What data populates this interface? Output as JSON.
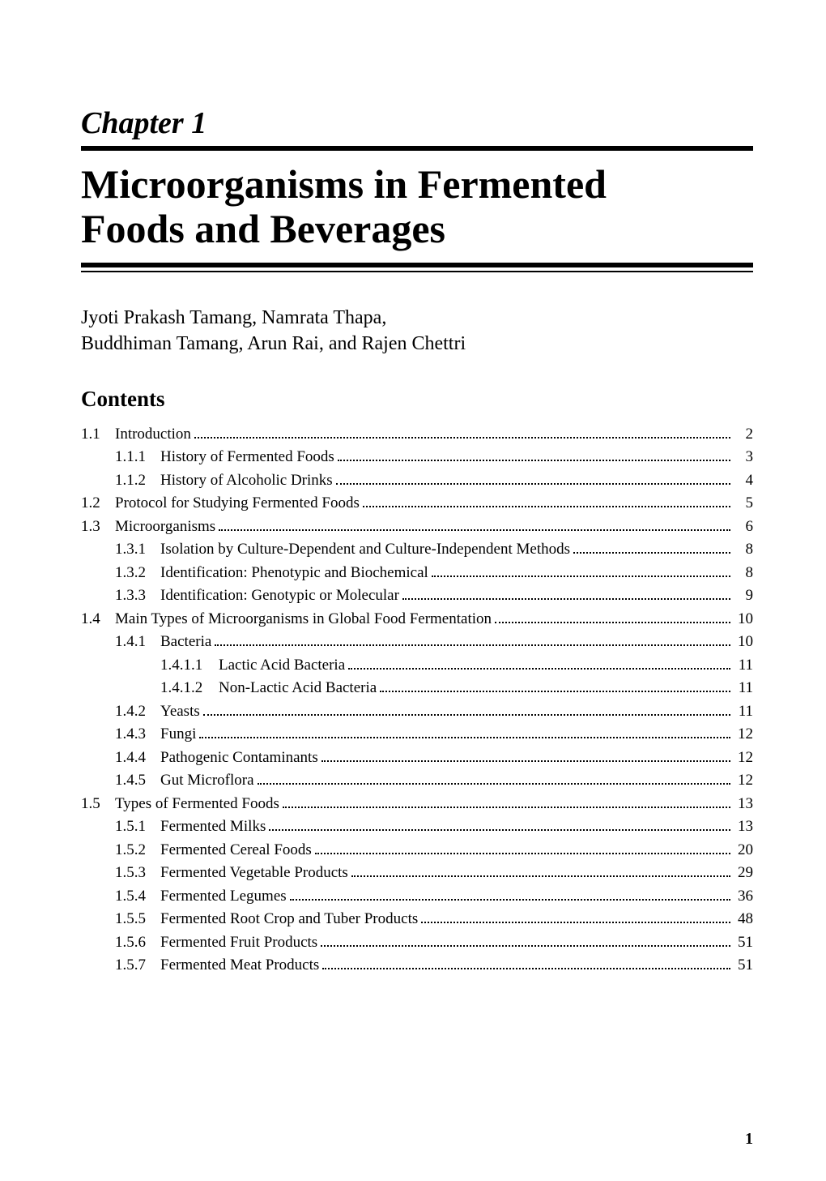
{
  "chapter_label": "Chapter 1",
  "chapter_title_line1": "Microorganisms in Fermented",
  "chapter_title_line2": "Foods and Beverages",
  "authors_line1": "Jyoti Prakash Tamang, Namrata Thapa,",
  "authors_line2": "Buddhiman Tamang, Arun Rai, and Rajen Chettri",
  "contents_heading": "Contents",
  "page_number": "1",
  "toc": [
    {
      "level": 1,
      "num": "1.1",
      "text": "Introduction",
      "page": "2"
    },
    {
      "level": 2,
      "num": "1.1.1",
      "text": "History of Fermented Foods",
      "page": "3"
    },
    {
      "level": 2,
      "num": "1.1.2",
      "text": "History of Alcoholic Drinks",
      "page": "4"
    },
    {
      "level": 1,
      "num": "1.2",
      "text": "Protocol for Studying Fermented Foods",
      "page": "5"
    },
    {
      "level": 1,
      "num": "1.3",
      "text": "Microorganisms",
      "page": "6"
    },
    {
      "level": 2,
      "num": "1.3.1",
      "text": "Isolation by Culture-Dependent and Culture-Independent Methods",
      "page": "8"
    },
    {
      "level": 2,
      "num": "1.3.2",
      "text": "Identification: Phenotypic and Biochemical",
      "page": "8"
    },
    {
      "level": 2,
      "num": "1.3.3",
      "text": "Identification: Genotypic or Molecular",
      "page": "9"
    },
    {
      "level": 1,
      "num": "1.4",
      "text": "Main Types of Microorganisms in Global Food Fermentation",
      "page": "10"
    },
    {
      "level": 2,
      "num": "1.4.1",
      "text": "Bacteria",
      "page": "10"
    },
    {
      "level": 3,
      "num": "1.4.1.1",
      "text": "Lactic Acid Bacteria",
      "page": "11"
    },
    {
      "level": 3,
      "num": "1.4.1.2",
      "text": "Non-Lactic Acid Bacteria",
      "page": "11"
    },
    {
      "level": 2,
      "num": "1.4.2",
      "text": "Yeasts",
      "page": "11"
    },
    {
      "level": 2,
      "num": "1.4.3",
      "text": "Fungi",
      "page": "12"
    },
    {
      "level": 2,
      "num": "1.4.4",
      "text": "Pathogenic Contaminants",
      "page": "12"
    },
    {
      "level": 2,
      "num": "1.4.5",
      "text": "Gut Microflora",
      "page": "12"
    },
    {
      "level": 1,
      "num": "1.5",
      "text": "Types of Fermented Foods",
      "page": "13"
    },
    {
      "level": 2,
      "num": "1.5.1",
      "text": "Fermented Milks",
      "page": "13"
    },
    {
      "level": 2,
      "num": "1.5.2",
      "text": "Fermented Cereal Foods",
      "page": "20"
    },
    {
      "level": 2,
      "num": "1.5.3",
      "text": "Fermented Vegetable Products",
      "page": "29"
    },
    {
      "level": 2,
      "num": "1.5.4",
      "text": "Fermented Legumes",
      "page": "36"
    },
    {
      "level": 2,
      "num": "1.5.5",
      "text": "Fermented Root Crop and Tuber Products",
      "page": "48"
    },
    {
      "level": 2,
      "num": "1.5.6",
      "text": "Fermented Fruit Products",
      "page": "51"
    },
    {
      "level": 2,
      "num": "1.5.7",
      "text": "Fermented Meat Products",
      "page": "51"
    }
  ]
}
